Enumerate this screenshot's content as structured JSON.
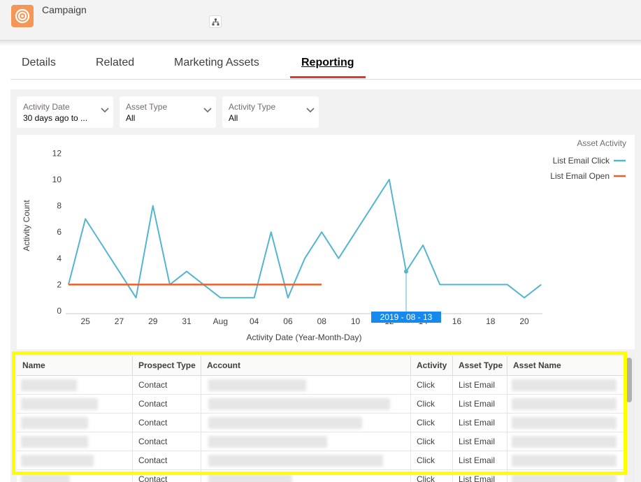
{
  "header": {
    "title": "Campaign",
    "icon": "campaign-target-icon",
    "hierarchy_icon": "hierarchy-icon"
  },
  "tabs": [
    {
      "label": "Details",
      "active": false
    },
    {
      "label": "Related",
      "active": false
    },
    {
      "label": "Marketing Assets",
      "active": false
    },
    {
      "label": "Reporting",
      "active": true
    }
  ],
  "filters": [
    {
      "label": "Activity Date",
      "value": "30 days ago to ..."
    },
    {
      "label": "Asset Type",
      "value": "All"
    },
    {
      "label": "Activity Type",
      "value": "All"
    }
  ],
  "chart_data": {
    "type": "line",
    "title": "",
    "xlabel": "Activity Date (Year-Month-Day)",
    "ylabel": "Activity Count",
    "ylim": [
      0,
      12
    ],
    "yticks": [
      "0",
      "2",
      "4",
      "6",
      "8",
      "10",
      "12"
    ],
    "xticks": [
      "25",
      "27",
      "29",
      "31",
      "Aug",
      "04",
      "06",
      "08",
      "10",
      "12",
      "14",
      "16",
      "18",
      "20"
    ],
    "x": [
      "2019-07-24",
      "2019-07-25",
      "2019-07-26",
      "2019-07-27",
      "2019-07-28",
      "2019-07-29",
      "2019-07-30",
      "2019-07-31",
      "2019-08-01",
      "2019-08-02",
      "2019-08-03",
      "2019-08-04",
      "2019-08-05",
      "2019-08-06",
      "2019-08-07",
      "2019-08-08",
      "2019-08-09",
      "2019-08-10",
      "2019-08-11",
      "2019-08-12",
      "2019-08-13",
      "2019-08-14",
      "2019-08-15",
      "2019-08-16",
      "2019-08-17",
      "2019-08-18",
      "2019-08-19",
      "2019-08-20",
      "2019-08-21"
    ],
    "legend_title": "Asset Activity",
    "legend_position": "top-right",
    "grid": false,
    "tooltip_label": "2019 - 08 - 13",
    "series": [
      {
        "name": "List Email Click",
        "color": "#54b5d0",
        "x": [
          "2019-07-24",
          "2019-07-25",
          "2019-07-26",
          "2019-07-27",
          "2019-07-28",
          "2019-07-29",
          "2019-07-30",
          "2019-07-31",
          "2019-08-01",
          "2019-08-02",
          "2019-08-03",
          "2019-08-04",
          "2019-08-05",
          "2019-08-06",
          "2019-08-07",
          "2019-08-08",
          "2019-08-09",
          "2019-08-10",
          "2019-08-11",
          "2019-08-12",
          "2019-08-13",
          "2019-08-14",
          "2019-08-15",
          "2019-08-16",
          "2019-08-17",
          "2019-08-18",
          "2019-08-19",
          "2019-08-20",
          "2019-08-21"
        ],
        "values": [
          2,
          7,
          5,
          3,
          1,
          8,
          2,
          3,
          2,
          1,
          1,
          1,
          6,
          1,
          4,
          6,
          4,
          6,
          8,
          10,
          3,
          5,
          2,
          2,
          2,
          2,
          2,
          1,
          2
        ]
      },
      {
        "name": "List Email Open",
        "color": "#e8602f",
        "x": [
          "2019-07-24",
          "2019-08-08"
        ],
        "values": [
          2,
          2
        ]
      }
    ]
  },
  "table": {
    "columns": [
      "Name",
      "Prospect Type",
      "Account",
      "Activity",
      "Asset Type",
      "Asset Name"
    ],
    "rows": [
      {
        "prospect_type": "Contact",
        "activity": "Click",
        "asset_type": "List Email"
      },
      {
        "prospect_type": "Contact",
        "activity": "Click",
        "asset_type": "List Email"
      },
      {
        "prospect_type": "Contact",
        "activity": "Click",
        "asset_type": "List Email"
      },
      {
        "prospect_type": "Contact",
        "activity": "Click",
        "asset_type": "List Email"
      },
      {
        "prospect_type": "Contact",
        "activity": "Click",
        "asset_type": "List Email"
      },
      {
        "prospect_type": "Contact",
        "activity": "Click",
        "asset_type": "List Email"
      }
    ]
  },
  "colors": {
    "accent_tab": "#e3362d",
    "highlight": "#ffff00",
    "tooltip": "#1589ee"
  }
}
